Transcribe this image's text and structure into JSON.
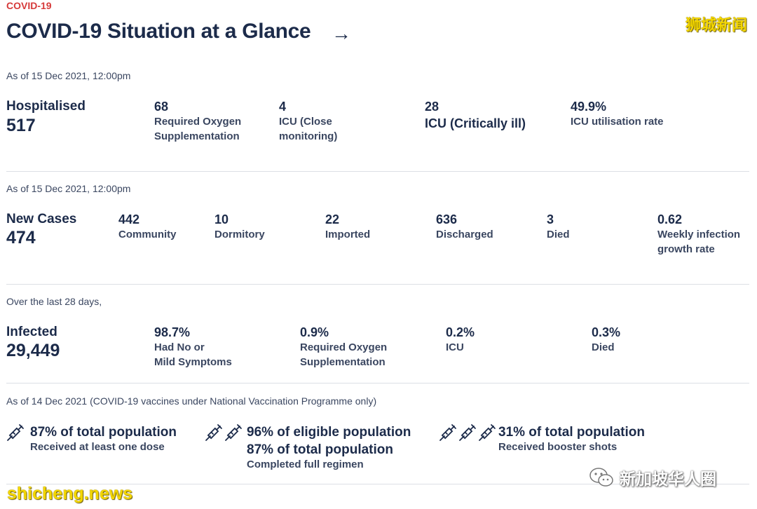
{
  "header": {
    "tag": "COVID-19",
    "title": "COVID-19 Situation at a Glance",
    "arrow": "→",
    "watermark": "狮城新闻"
  },
  "hospital": {
    "asof": "As of 15 Dec 2021, 12:00pm",
    "label": "Hospitalised",
    "value": "517",
    "stats": [
      {
        "value": "68",
        "label1": "Required Oxygen",
        "label2": "Supplementation"
      },
      {
        "value": "4",
        "label1": "ICU (Close",
        "label2": "monitoring)"
      },
      {
        "value": "28",
        "label1": "ICU (Critically ill)",
        "label2": ""
      },
      {
        "value": "49.9%",
        "label1": "ICU utilisation rate",
        "label2": ""
      }
    ]
  },
  "cases": {
    "asof": "As of 15 Dec 2021, 12:00pm",
    "label": "New Cases",
    "value": "474",
    "stats": [
      {
        "value": "442",
        "label1": "Community",
        "label2": ""
      },
      {
        "value": "10",
        "label1": "Dormitory",
        "label2": ""
      },
      {
        "value": "22",
        "label1": "Imported",
        "label2": ""
      },
      {
        "value": "636",
        "label1": "Discharged",
        "label2": ""
      },
      {
        "value": "3",
        "label1": "Died",
        "label2": ""
      },
      {
        "value": "0.62",
        "label1": "Weekly infection",
        "label2": "growth rate"
      }
    ]
  },
  "infected": {
    "asof": "Over the last 28 days,",
    "label": "Infected",
    "value": "29,449",
    "stats": [
      {
        "value": "98.7%",
        "label1": "Had No or",
        "label2": "Mild Symptoms"
      },
      {
        "value": "0.9%",
        "label1": "Required Oxygen",
        "label2": "Supplementation"
      },
      {
        "value": "0.2%",
        "label1": "ICU",
        "label2": ""
      },
      {
        "value": "0.3%",
        "label1": "Died",
        "label2": ""
      }
    ]
  },
  "vaccination": {
    "asof": "As of 14 Dec 2021 (COVID-19 vaccines under National Vaccination Programme only)",
    "items": [
      {
        "icon": "syringe-icon",
        "main1": "87% of total population",
        "main2": "",
        "sub": "Received at least one dose"
      },
      {
        "icon": "syringe-icon",
        "main1": "96% of eligible population",
        "main2": "87% of total population",
        "sub": "Completed full regimen"
      },
      {
        "icon": "syringe-icon",
        "main1": "31% of total population",
        "main2": "",
        "sub": "Received booster shots"
      }
    ]
  },
  "footer": {
    "watermark": "shicheng.news",
    "wechat_name": "新加坡华人圈"
  }
}
